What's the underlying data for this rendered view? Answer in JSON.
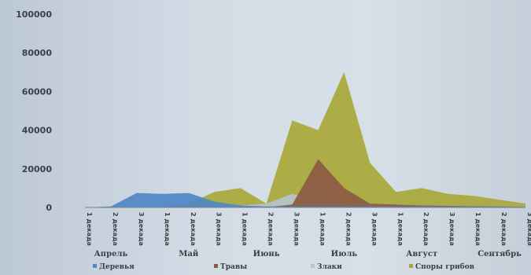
{
  "chart_data": {
    "type": "area",
    "title": "",
    "xlabel": "",
    "ylabel": "",
    "ylim": [
      0,
      100000
    ],
    "y_ticks": [
      "0",
      "20000",
      "40000",
      "60000",
      "80000",
      "100000"
    ],
    "y_tick_values": [
      0,
      20000,
      40000,
      60000,
      80000,
      100000
    ],
    "x": [
      "1 декада",
      "2 декада",
      "3 декада",
      "1 декада",
      "2 декада",
      "3 декада",
      "1 декада",
      "2 декада",
      "3 декада",
      "1 декада",
      "2 декада",
      "3 декада",
      "1 декада",
      "2 декада",
      "3 декада",
      "1 декада",
      "2 декада",
      "3 декада"
    ],
    "months": [
      {
        "label": "Апрель",
        "start": 0
      },
      {
        "label": "Май",
        "start": 3
      },
      {
        "label": "Июнь",
        "start": 6
      },
      {
        "label": "Июль",
        "start": 9
      },
      {
        "label": "Август",
        "start": 12
      },
      {
        "label": "Сентябрь",
        "start": 15
      }
    ],
    "grid": false,
    "legend_position": "bottom",
    "series": [
      {
        "name": "Деревья",
        "color": "#4f86c6",
        "values": [
          0,
          500,
          7500,
          7000,
          7500,
          3000,
          1000,
          500,
          500,
          500,
          500,
          500,
          500,
          500,
          500,
          500,
          500,
          300
        ]
      },
      {
        "name": "Травы",
        "color": "#8c5a44",
        "values": [
          0,
          0,
          0,
          0,
          0,
          0,
          0,
          0,
          1500,
          25000,
          10000,
          2000,
          1500,
          1000,
          800,
          600,
          400,
          200
        ]
      },
      {
        "name": "Злаки",
        "color": "#b6c2cc",
        "values": [
          0,
          0,
          0,
          0,
          0,
          500,
          1000,
          2000,
          7000,
          4000,
          3000,
          2000,
          1500,
          1000,
          800,
          500,
          300,
          200
        ]
      },
      {
        "name": "Споры грибов",
        "color": "#a8a83a",
        "values": [
          0,
          0,
          0,
          0,
          2000,
          8000,
          10000,
          2000,
          45000,
          40000,
          70000,
          23000,
          8000,
          10000,
          7000,
          6000,
          4000,
          2000
        ]
      }
    ]
  }
}
